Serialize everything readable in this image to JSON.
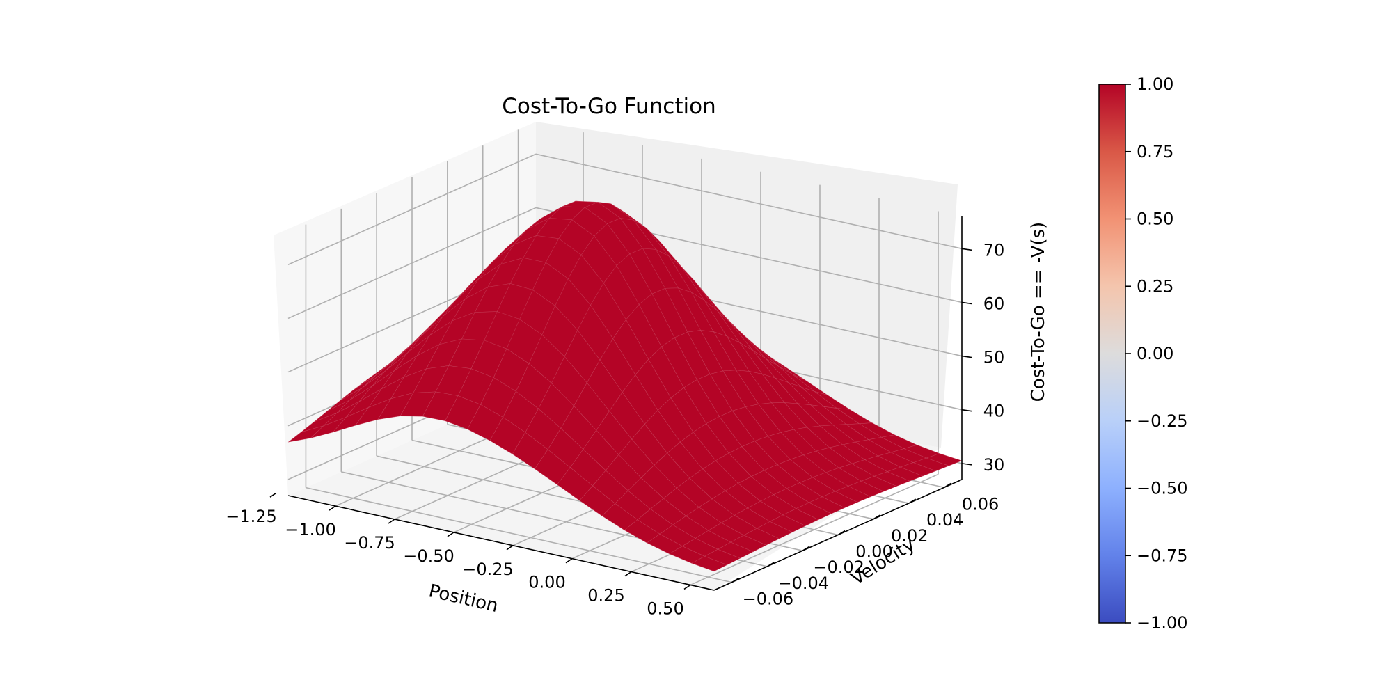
{
  "chart_data": {
    "type": "surface3d",
    "title": "Cost-To-Go Function",
    "xlabel": "Position",
    "ylabel": "Velocity",
    "zlabel": "Cost-To-Go == -V(s)",
    "xlim": [
      -1.2,
      0.6
    ],
    "ylim": [
      -0.07,
      0.07
    ],
    "zlim": [
      27,
      76
    ],
    "x_ticks": [
      "−1.25",
      "−1.00",
      "−0.75",
      "−0.50",
      "−0.25",
      "0.00",
      "0.25",
      "0.50"
    ],
    "x_tick_values": [
      -1.25,
      -1.0,
      -0.75,
      -0.5,
      -0.25,
      0.0,
      0.25,
      0.5
    ],
    "y_ticks": [
      "−0.06",
      "−0.04",
      "−0.02",
      "0.00",
      "0.02",
      "0.04",
      "0.06"
    ],
    "y_tick_values": [
      -0.06,
      -0.04,
      -0.02,
      0.0,
      0.02,
      0.04,
      0.06
    ],
    "z_ticks": [
      "30",
      "40",
      "50",
      "60",
      "70"
    ],
    "z_tick_values": [
      30,
      40,
      50,
      60,
      70
    ],
    "surface": {
      "color": "#b40426",
      "x_range": [
        -1.2,
        0.6
      ],
      "y_range": [
        -0.07,
        0.07
      ],
      "grid": [
        19,
        19
      ],
      "corner_values": {
        "x_min_y_min": 33,
        "x_min_y_max": 30,
        "x_max_y_min": 30,
        "x_max_y_max": 30
      },
      "peak": {
        "x": -0.5,
        "y": 0.0,
        "z": 76
      }
    },
    "grid": true,
    "colorbar": {
      "position": "right",
      "cmap": "coolwarm",
      "range": [
        -1.0,
        1.0
      ],
      "ticks": [
        "1.00",
        "0.75",
        "0.50",
        "0.25",
        "0.00",
        "−0.25",
        "−0.50",
        "−0.75",
        "−1.00"
      ],
      "tick_values": [
        1.0,
        0.75,
        0.5,
        0.25,
        0.0,
        -0.25,
        -0.5,
        -0.75,
        -1.0
      ]
    }
  }
}
